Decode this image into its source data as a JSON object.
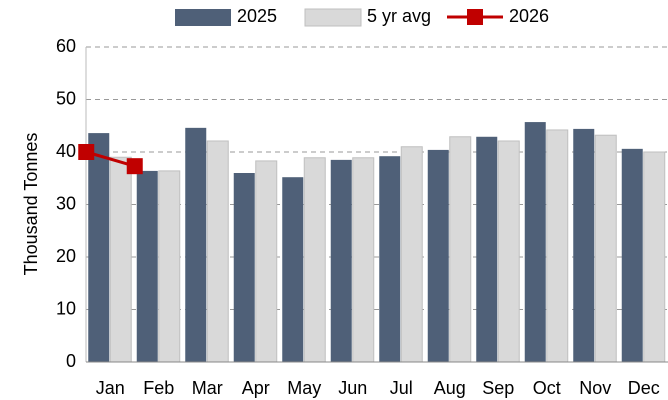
{
  "chart_data": {
    "type": "bar",
    "y_label": "Thousand Tonnes",
    "categories": [
      "Jan",
      "Feb",
      "Mar",
      "Apr",
      "May",
      "Jun",
      "Jul",
      "Aug",
      "Sep",
      "Oct",
      "Nov",
      "Dec"
    ],
    "series": [
      {
        "name": "2025",
        "color": "#4f6078",
        "type": "bar",
        "values": [
          43.6,
          36.4,
          44.6,
          36,
          35.2,
          38.5,
          39.2,
          40.4,
          42.9,
          45.7,
          44.4,
          40.6
        ]
      },
      {
        "name": "5 yr avg",
        "color": "#d9d9d9",
        "type": "bar",
        "values": [
          39,
          36.4,
          42.1,
          38.3,
          38.9,
          38.9,
          41,
          42.9,
          42.1,
          44.2,
          43.2,
          40
        ]
      },
      {
        "name": "2026",
        "color": "#c00000",
        "type": "line",
        "values": [
          40,
          37.3,
          null,
          null,
          null,
          null,
          null,
          null,
          null,
          null,
          null,
          null
        ]
      }
    ],
    "ylim": [
      0,
      60
    ],
    "yticks": [
      0,
      10,
      20,
      30,
      40,
      50,
      60
    ],
    "grid": true,
    "legend": "top"
  }
}
